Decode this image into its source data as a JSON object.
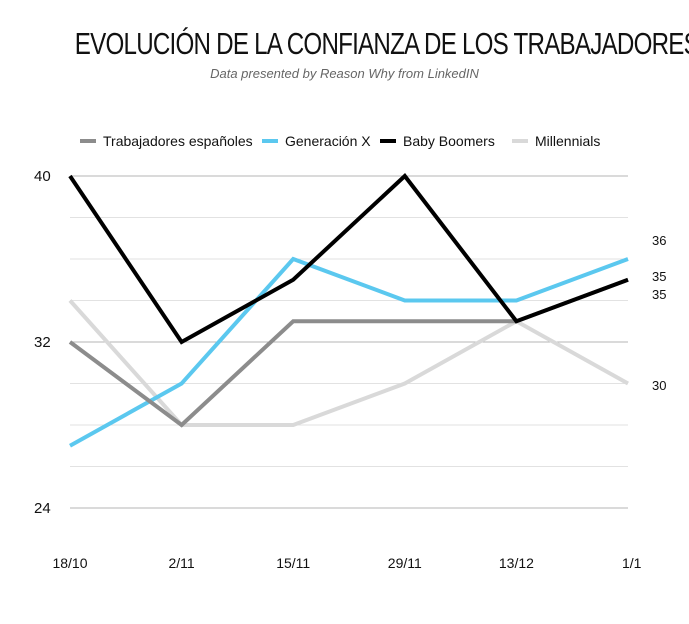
{
  "chart_data": {
    "type": "line",
    "title": "EVOLUCIÓN DE LA CONFIANZA DE LOS TRABAJADORES",
    "subtitle": "Data presented by Reason Why from LinkedIN",
    "categories": [
      "18/10",
      "2/11",
      "15/11",
      "29/11",
      "13/12",
      "1/1"
    ],
    "ylim": [
      22,
      40
    ],
    "yticks": [
      24,
      32,
      40
    ],
    "grid": true,
    "legend_position": "top",
    "series": [
      {
        "name": "Trabajadores españoles",
        "color": "#8c8c8c",
        "values": [
          32,
          28,
          33,
          33,
          33,
          35
        ],
        "end_label": "35"
      },
      {
        "name": "Generación X",
        "color": "#5bc8ef",
        "values": [
          27,
          30,
          36,
          34,
          34,
          36
        ],
        "end_label": "36"
      },
      {
        "name": "Baby Boomers",
        "color": "#000000",
        "values": [
          40,
          32,
          35,
          40,
          33,
          35
        ],
        "end_label": "35"
      },
      {
        "name": "Millennials",
        "color": "#d9d9d9",
        "values": [
          34,
          28,
          28,
          30,
          33,
          30
        ],
        "end_label": "30"
      }
    ]
  }
}
